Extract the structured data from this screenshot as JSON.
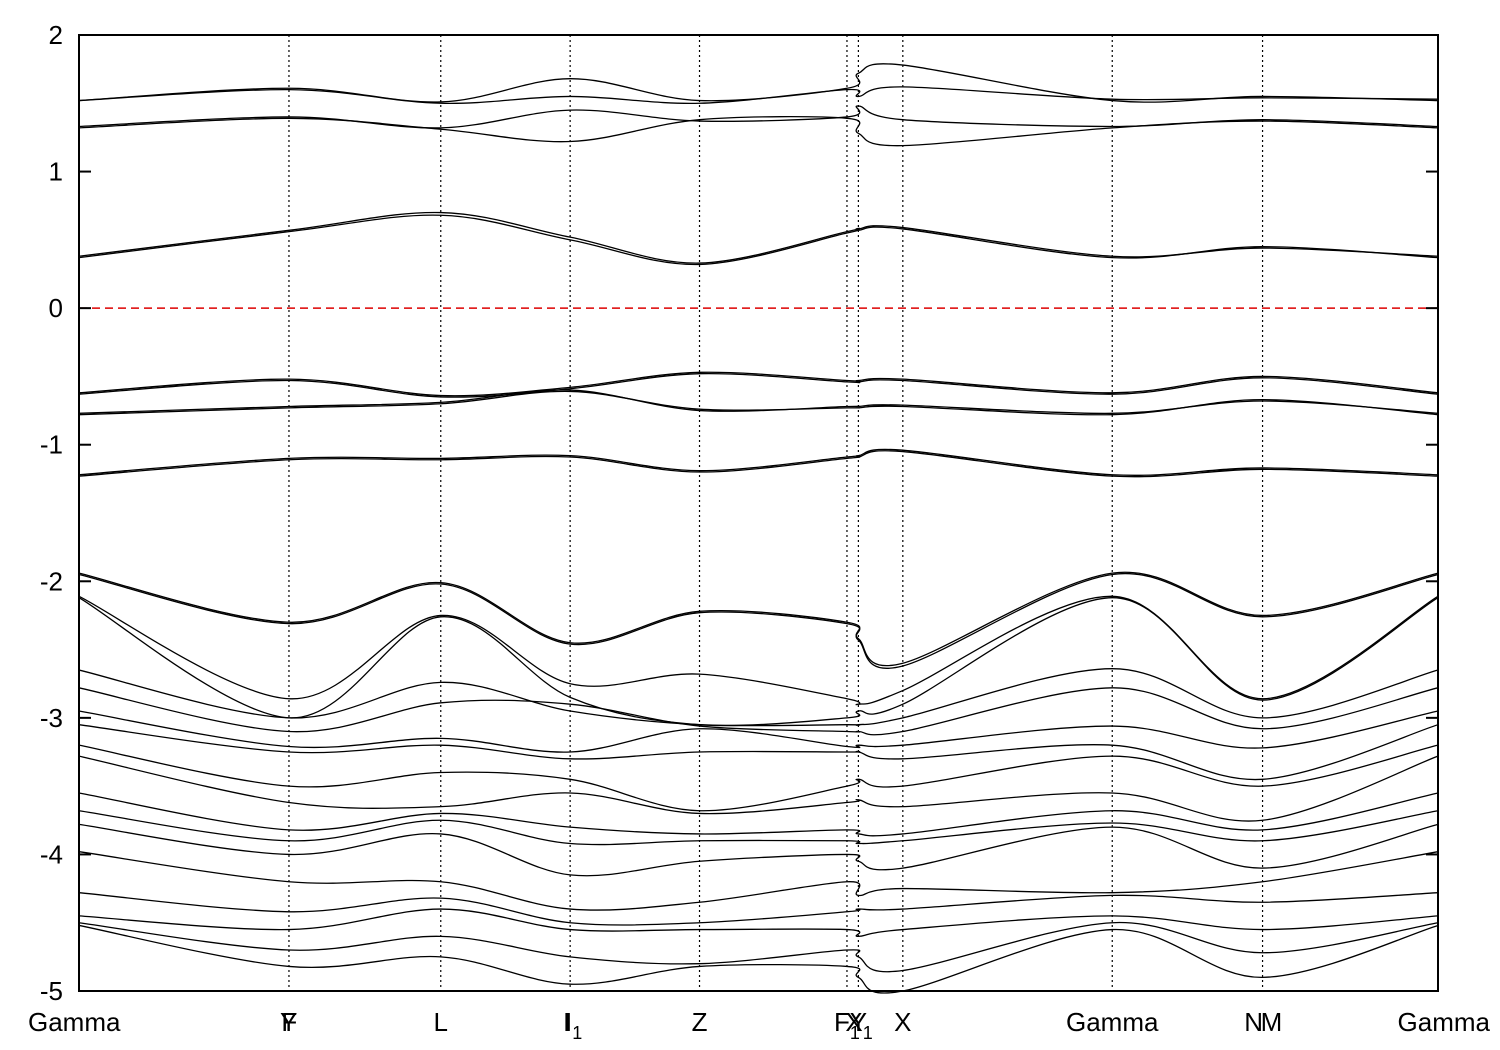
{
  "chart_data": {
    "type": "line",
    "title": "",
    "xlabel": "",
    "ylabel": "",
    "ylim": [
      -5,
      2
    ],
    "yticks": [
      {
        "value": 2,
        "label": "2"
      },
      {
        "value": 1,
        "label": "1"
      },
      {
        "value": 0,
        "label": "0"
      },
      {
        "value": -1,
        "label": "-1"
      },
      {
        "value": -2,
        "label": "-2"
      },
      {
        "value": -3,
        "label": "-3"
      },
      {
        "value": -4,
        "label": "-4"
      },
      {
        "value": -5,
        "label": "-5"
      }
    ],
    "xlim": [
      0,
      10
    ],
    "kpoints": [
      {
        "x": 0.0,
        "label": "Gamma",
        "sub": ""
      },
      {
        "x": 1.543,
        "label": "Y",
        "sub": ""
      },
      {
        "x": 1.548,
        "label": "F",
        "sub": ""
      },
      {
        "x": 2.662,
        "label": "L",
        "sub": ""
      },
      {
        "x": 3.588,
        "label": "I",
        "sub": ""
      },
      {
        "x": 3.64,
        "label": "I",
        "sub": "1"
      },
      {
        "x": 4.566,
        "label": "Z",
        "sub": ""
      },
      {
        "x": 5.651,
        "label": "F",
        "sub": "1"
      },
      {
        "x": 5.735,
        "label": "Y",
        "sub": ""
      },
      {
        "x": 5.74,
        "label": "X",
        "sub": "1"
      },
      {
        "x": 6.062,
        "label": "X",
        "sub": ""
      },
      {
        "x": 7.603,
        "label": "Gamma",
        "sub": ""
      },
      {
        "x": 8.643,
        "label": "N",
        "sub": ""
      },
      {
        "x": 8.775,
        "label": "M",
        "sub": ""
      },
      {
        "x": 10.0,
        "label": "Gamma",
        "sub": ""
      }
    ],
    "dividers_x": [
      1.545,
      2.662,
      3.614,
      4.566,
      5.651,
      5.735,
      6.062,
      7.603,
      8.709
    ],
    "fermi_level": {
      "value": 0,
      "color": "#dd0000",
      "style": "dashed"
    },
    "colors": {
      "bands": "#000000",
      "fermi": "#dd0000",
      "dividers": "#000000"
    },
    "series": [
      {
        "x": [
          0,
          1.545,
          2.662,
          3.614,
          4.566,
          5.651,
          5.735,
          6.062,
          7.603,
          8.709,
          10
        ],
        "values": [
          1.52,
          1.61,
          1.51,
          1.68,
          1.52,
          1.61,
          1.72,
          1.78,
          1.52,
          1.55,
          1.52
        ]
      },
      {
        "x": [
          0,
          1.545,
          2.662,
          3.614,
          4.566,
          5.651,
          5.735,
          6.062,
          7.603,
          8.709,
          10
        ],
        "values": [
          1.52,
          1.6,
          1.5,
          1.55,
          1.5,
          1.6,
          1.55,
          1.62,
          1.53,
          1.54,
          1.53
        ]
      },
      {
        "x": [
          0,
          1.545,
          2.662,
          3.614,
          4.566,
          5.651,
          5.735,
          6.062,
          7.603,
          8.709,
          10
        ],
        "values": [
          1.33,
          1.4,
          1.32,
          1.45,
          1.37,
          1.4,
          1.48,
          1.38,
          1.33,
          1.38,
          1.33
        ]
      },
      {
        "x": [
          0,
          1.545,
          2.662,
          3.614,
          4.566,
          5.651,
          5.735,
          6.062,
          7.603,
          8.709,
          10
        ],
        "values": [
          1.32,
          1.39,
          1.31,
          1.22,
          1.38,
          1.39,
          1.28,
          1.19,
          1.32,
          1.37,
          1.32
        ]
      },
      {
        "x": [
          0,
          1.545,
          2.662,
          3.614,
          4.566,
          5.651,
          5.735,
          6.062,
          7.603,
          8.709,
          10
        ],
        "values": [
          0.38,
          0.57,
          0.7,
          0.52,
          0.33,
          0.56,
          0.58,
          0.59,
          0.38,
          0.44,
          0.38
        ]
      },
      {
        "x": [
          0,
          1.545,
          2.662,
          3.614,
          4.566,
          5.651,
          5.735,
          6.062,
          7.603,
          8.709,
          10
        ],
        "values": [
          0.37,
          0.56,
          0.68,
          0.5,
          0.32,
          0.55,
          0.57,
          0.58,
          0.37,
          0.45,
          0.37
        ]
      },
      {
        "x": [
          0,
          1.545,
          2.662,
          3.614,
          4.566,
          5.651,
          5.735,
          6.062,
          7.603,
          8.709,
          10
        ],
        "values": [
          -0.62,
          -0.52,
          -0.64,
          -0.58,
          -0.47,
          -0.53,
          -0.53,
          -0.52,
          -0.62,
          -0.5,
          -0.62
        ]
      },
      {
        "x": [
          0,
          1.545,
          2.662,
          3.614,
          4.566,
          5.651,
          5.735,
          6.062,
          7.603,
          8.709,
          10
        ],
        "values": [
          -0.63,
          -0.53,
          -0.65,
          -0.59,
          -0.48,
          -0.54,
          -0.54,
          -0.53,
          -0.63,
          -0.51,
          -0.63
        ]
      },
      {
        "x": [
          0,
          1.545,
          2.662,
          3.614,
          4.566,
          5.651,
          5.735,
          6.062,
          7.603,
          8.709,
          10
        ],
        "values": [
          -0.78,
          -0.73,
          -0.7,
          -0.61,
          -0.74,
          -0.73,
          -0.73,
          -0.72,
          -0.78,
          -0.67,
          -0.78
        ]
      },
      {
        "x": [
          0,
          1.545,
          2.662,
          3.614,
          4.566,
          5.651,
          5.735,
          6.062,
          7.603,
          8.709,
          10
        ],
        "values": [
          -0.77,
          -0.72,
          -0.69,
          -0.6,
          -0.75,
          -0.72,
          -0.72,
          -0.71,
          -0.77,
          -0.68,
          -0.77
        ]
      },
      {
        "x": [
          0,
          1.545,
          2.662,
          3.614,
          4.566,
          5.651,
          5.735,
          6.062,
          7.603,
          8.709,
          10
        ],
        "values": [
          -1.23,
          -1.11,
          -1.11,
          -1.09,
          -1.2,
          -1.1,
          -1.09,
          -1.05,
          -1.23,
          -1.18,
          -1.23
        ]
      },
      {
        "x": [
          0,
          1.545,
          2.662,
          3.614,
          4.566,
          5.651,
          5.735,
          6.062,
          7.603,
          8.709,
          10
        ],
        "values": [
          -1.22,
          -1.1,
          -1.1,
          -1.08,
          -1.19,
          -1.09,
          -1.08,
          -1.04,
          -1.22,
          -1.17,
          -1.22
        ]
      },
      {
        "x": [
          0,
          1.545,
          2.662,
          3.614,
          4.566,
          5.651,
          5.735,
          6.062,
          7.603,
          8.709,
          10
        ],
        "values": [
          -1.94,
          -2.3,
          -2.01,
          -2.45,
          -2.22,
          -2.3,
          -2.42,
          -2.6,
          -1.94,
          -2.25,
          -1.94
        ]
      },
      {
        "x": [
          0,
          1.545,
          2.662,
          3.614,
          4.566,
          5.651,
          5.735,
          6.062,
          7.603,
          8.709,
          10
        ],
        "values": [
          -1.95,
          -2.31,
          -2.02,
          -2.46,
          -2.23,
          -2.31,
          -2.43,
          -2.62,
          -1.95,
          -2.26,
          -1.95
        ]
      },
      {
        "x": [
          0,
          1.545,
          2.662,
          3.614,
          4.566,
          5.651,
          5.735,
          6.062,
          7.603,
          8.709,
          10
        ],
        "values": [
          -2.11,
          -2.86,
          -2.25,
          -2.75,
          -2.68,
          -2.86,
          -2.9,
          -2.8,
          -2.11,
          -2.86,
          -2.11
        ]
      },
      {
        "x": [
          0,
          1.545,
          2.662,
          3.614,
          4.566,
          5.651,
          5.735,
          6.062,
          7.603,
          8.709,
          10
        ],
        "values": [
          -2.12,
          -3.0,
          -2.26,
          -2.85,
          -3.05,
          -3.0,
          -2.95,
          -2.9,
          -2.12,
          -2.87,
          -2.12
        ]
      },
      {
        "x": [
          0,
          1.545,
          2.662,
          3.614,
          4.566,
          5.651,
          5.735,
          6.062,
          7.603,
          8.709,
          10
        ],
        "values": [
          -2.65,
          -3.0,
          -2.74,
          -2.95,
          -3.05,
          -3.05,
          -3.05,
          -3.0,
          -2.64,
          -3.0,
          -2.65
        ]
      },
      {
        "x": [
          0,
          1.545,
          2.662,
          3.614,
          4.566,
          5.651,
          5.735,
          6.062,
          7.603,
          8.709,
          10
        ],
        "values": [
          -2.78,
          -3.1,
          -2.89,
          -2.9,
          -3.06,
          -3.1,
          -3.1,
          -3.1,
          -2.78,
          -3.08,
          -2.78
        ]
      },
      {
        "x": [
          0,
          1.545,
          2.662,
          3.614,
          4.566,
          5.651,
          5.735,
          6.062,
          7.603,
          8.709,
          10
        ],
        "values": [
          -2.95,
          -3.21,
          -3.15,
          -3.25,
          -3.08,
          -3.21,
          -3.2,
          -3.2,
          -3.06,
          -3.22,
          -2.95
        ]
      },
      {
        "x": [
          0,
          1.545,
          2.662,
          3.614,
          4.566,
          5.651,
          5.735,
          6.062,
          7.603,
          8.709,
          10
        ],
        "values": [
          -3.05,
          -3.25,
          -3.2,
          -3.3,
          -3.25,
          -3.25,
          -3.25,
          -3.3,
          -3.2,
          -3.45,
          -3.05
        ]
      },
      {
        "x": [
          0,
          1.545,
          2.662,
          3.614,
          4.566,
          5.651,
          5.735,
          6.062,
          7.603,
          8.709,
          10
        ],
        "values": [
          -3.2,
          -3.5,
          -3.4,
          -3.45,
          -3.68,
          -3.5,
          -3.45,
          -3.5,
          -3.28,
          -3.5,
          -3.2
        ]
      },
      {
        "x": [
          0,
          1.545,
          2.662,
          3.614,
          4.566,
          5.651,
          5.735,
          6.062,
          7.603,
          8.709,
          10
        ],
        "values": [
          -3.28,
          -3.62,
          -3.65,
          -3.55,
          -3.7,
          -3.62,
          -3.6,
          -3.65,
          -3.55,
          -3.75,
          -3.28
        ]
      },
      {
        "x": [
          0,
          1.545,
          2.662,
          3.614,
          4.566,
          5.651,
          5.735,
          6.062,
          7.603,
          8.709,
          10
        ],
        "values": [
          -3.55,
          -3.82,
          -3.7,
          -3.8,
          -3.85,
          -3.82,
          -3.85,
          -3.85,
          -3.68,
          -3.82,
          -3.55
        ]
      },
      {
        "x": [
          0,
          1.545,
          2.662,
          3.614,
          4.566,
          5.651,
          5.735,
          6.062,
          7.603,
          8.709,
          10
        ],
        "values": [
          -3.68,
          -3.9,
          -3.75,
          -3.92,
          -3.9,
          -3.9,
          -3.92,
          -3.9,
          -3.77,
          -3.9,
          -3.68
        ]
      },
      {
        "x": [
          0,
          1.545,
          2.662,
          3.614,
          4.566,
          5.651,
          5.735,
          6.062,
          7.603,
          8.709,
          10
        ],
        "values": [
          -3.78,
          -4.0,
          -3.85,
          -4.15,
          -4.05,
          -4.0,
          -4.05,
          -4.1,
          -3.8,
          -4.1,
          -3.78
        ]
      },
      {
        "x": [
          0,
          1.545,
          2.662,
          3.614,
          4.566,
          5.651,
          5.735,
          6.062,
          7.603,
          8.709,
          10
        ],
        "values": [
          -3.98,
          -4.2,
          -4.2,
          -4.4,
          -4.35,
          -4.2,
          -4.3,
          -4.25,
          -4.28,
          -4.2,
          -3.98
        ]
      },
      {
        "x": [
          0,
          1.545,
          2.662,
          3.614,
          4.566,
          5.651,
          5.735,
          6.062,
          7.603,
          8.709,
          10
        ],
        "values": [
          -4.28,
          -4.42,
          -4.32,
          -4.5,
          -4.5,
          -4.42,
          -4.4,
          -4.4,
          -4.3,
          -4.35,
          -4.28
        ]
      },
      {
        "x": [
          0,
          1.545,
          2.662,
          3.614,
          4.566,
          5.651,
          5.735,
          6.062,
          7.603,
          8.709,
          10
        ],
        "values": [
          -4.45,
          -4.55,
          -4.4,
          -4.55,
          -4.55,
          -4.55,
          -4.6,
          -4.55,
          -4.45,
          -4.55,
          -4.45
        ]
      },
      {
        "x": [
          0,
          1.545,
          2.662,
          3.614,
          4.566,
          5.651,
          5.735,
          6.062,
          7.603,
          8.709,
          10
        ],
        "values": [
          -4.5,
          -4.7,
          -4.6,
          -4.75,
          -4.8,
          -4.7,
          -4.75,
          -4.85,
          -4.5,
          -4.72,
          -4.5
        ]
      },
      {
        "x": [
          0,
          1.545,
          2.662,
          3.614,
          4.566,
          5.651,
          5.735,
          6.062,
          7.603,
          8.709,
          10
        ],
        "values": [
          -4.52,
          -4.82,
          -4.75,
          -4.95,
          -4.82,
          -4.82,
          -4.9,
          -5.0,
          -4.55,
          -4.9,
          -4.52
        ]
      }
    ]
  }
}
